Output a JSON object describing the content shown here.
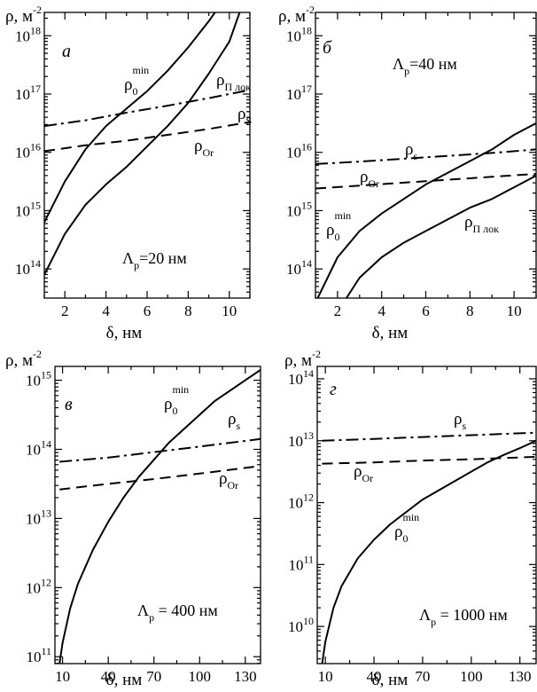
{
  "chart_data": [
    {
      "type": "line",
      "panel_label": "а",
      "xlabel": "δ, нм",
      "ylabel": "ρ, м⁻²",
      "xlim": [
        1,
        11
      ],
      "ylim_log10": [
        13.5,
        18.4
      ],
      "log_y": true,
      "xticks": [
        2,
        4,
        6,
        8,
        10
      ],
      "yticks_log10": [
        14,
        15,
        16,
        17,
        18
      ],
      "annotation": "Λp=20 нм",
      "series": [
        {
          "name": "ρ0 min",
          "style": "solid",
          "x": [
            1,
            2,
            3,
            4,
            5,
            6,
            7,
            8,
            9,
            10
          ],
          "log10_y": [
            14.8,
            15.5,
            16.05,
            16.45,
            16.75,
            17.05,
            17.4,
            17.8,
            18.25,
            18.75
          ]
        },
        {
          "name": "ρП лок",
          "style": "solid",
          "x": [
            1,
            2,
            3,
            4,
            5,
            6,
            7,
            8,
            9,
            10,
            10.5
          ],
          "log10_y": [
            13.9,
            14.6,
            15.1,
            15.45,
            15.75,
            16.1,
            16.45,
            16.85,
            17.35,
            17.9,
            18.4
          ]
        },
        {
          "name": "ρS",
          "style": "dashdot",
          "x": [
            1,
            3,
            5,
            7,
            9,
            11
          ],
          "log10_y": [
            16.45,
            16.55,
            16.68,
            16.8,
            16.93,
            17.07
          ]
        },
        {
          "name": "ρOr",
          "style": "dashed",
          "x": [
            1,
            3,
            5,
            7,
            9,
            11
          ],
          "log10_y": [
            16.02,
            16.12,
            16.2,
            16.3,
            16.4,
            16.52
          ]
        }
      ]
    },
    {
      "type": "line",
      "panel_label": "б",
      "xlabel": "δ, нм",
      "ylabel": "ρ, м⁻²",
      "xlim": [
        1,
        11
      ],
      "ylim_log10": [
        13.5,
        18.4
      ],
      "log_y": true,
      "xticks": [
        2,
        4,
        6,
        8,
        10
      ],
      "yticks_log10": [
        14,
        15,
        16,
        17,
        18
      ],
      "annotation": "Λp=40 нм",
      "series": [
        {
          "name": "ρ0 min",
          "style": "solid",
          "x": [
            1.1,
            2,
            3,
            4,
            5,
            6,
            7,
            8,
            9,
            10,
            11
          ],
          "log10_y": [
            13.5,
            14.2,
            14.65,
            14.95,
            15.2,
            15.45,
            15.65,
            15.85,
            16.05,
            16.3,
            16.5
          ]
        },
        {
          "name": "ρП лок",
          "style": "solid",
          "x": [
            2.4,
            3,
            4,
            5,
            6,
            7,
            8,
            9,
            10,
            11
          ],
          "log10_y": [
            13.5,
            13.85,
            14.2,
            14.45,
            14.65,
            14.85,
            15.05,
            15.2,
            15.4,
            15.6
          ]
        },
        {
          "name": "ρs",
          "style": "dashdot",
          "x": [
            1,
            3,
            5,
            7,
            9,
            11
          ],
          "log10_y": [
            15.8,
            15.84,
            15.89,
            15.94,
            15.99,
            16.05
          ]
        },
        {
          "name": "ρOr",
          "style": "dashed",
          "x": [
            1,
            3,
            5,
            7,
            9,
            11
          ],
          "log10_y": [
            15.38,
            15.43,
            15.48,
            15.53,
            15.58,
            15.63
          ]
        }
      ]
    },
    {
      "type": "line",
      "panel_label": "в",
      "xlabel": "δ, нм",
      "ylabel": "ρ, м⁻²",
      "xlim": [
        5,
        140
      ],
      "ylim_log10": [
        10.9,
        15.2
      ],
      "log_y": true,
      "xticks": [
        10,
        40,
        70,
        100,
        130
      ],
      "yticks_log10": [
        11,
        12,
        13,
        14,
        15
      ],
      "annotation": "Λp = 400 нм",
      "series": [
        {
          "name": "ρ0 min",
          "style": "solid",
          "x": [
            8,
            10,
            15,
            20,
            30,
            40,
            50,
            60,
            70,
            80,
            90,
            100,
            110,
            120,
            130,
            140
          ],
          "log10_y": [
            10.9,
            11.2,
            11.7,
            12.05,
            12.55,
            12.95,
            13.3,
            13.6,
            13.85,
            14.1,
            14.3,
            14.5,
            14.7,
            14.85,
            15.0,
            15.15
          ]
        },
        {
          "name": "ρs",
          "style": "dashdot",
          "x": [
            8,
            40,
            70,
            100,
            140
          ],
          "log10_y": [
            13.82,
            13.88,
            13.96,
            14.04,
            14.15
          ]
        },
        {
          "name": "ρOr",
          "style": "dashed",
          "x": [
            8,
            40,
            70,
            100,
            140
          ],
          "log10_y": [
            13.42,
            13.5,
            13.57,
            13.65,
            13.76
          ]
        }
      ]
    },
    {
      "type": "line",
      "panel_label": "г",
      "xlabel": "δ, нм",
      "ylabel": "ρ, м⁻²",
      "xlim": [
        5,
        140
      ],
      "ylim_log10": [
        9.4,
        14.2
      ],
      "log_y": true,
      "xticks": [
        10,
        40,
        70,
        100,
        130
      ],
      "yticks_log10": [
        10,
        11,
        12,
        13,
        14
      ],
      "annotation": "Λp = 1000 нм",
      "series": [
        {
          "name": "ρ0 min",
          "style": "solid",
          "x": [
            8,
            10,
            15,
            20,
            30,
            40,
            50,
            60,
            70,
            80,
            90,
            100,
            110,
            120,
            130,
            140
          ],
          "log10_y": [
            9.4,
            9.75,
            10.3,
            10.65,
            11.1,
            11.4,
            11.65,
            11.85,
            12.05,
            12.2,
            12.35,
            12.5,
            12.65,
            12.77,
            12.88,
            13.0
          ]
        },
        {
          "name": "ρs",
          "style": "dashdot",
          "x": [
            8,
            40,
            70,
            100,
            140
          ],
          "log10_y": [
            13.0,
            13.03,
            13.06,
            13.09,
            13.13
          ]
        },
        {
          "name": "ρOr",
          "style": "dashed",
          "x": [
            8,
            40,
            70,
            100,
            140
          ],
          "log10_y": [
            12.63,
            12.65,
            12.68,
            12.7,
            12.74
          ]
        }
      ]
    }
  ],
  "panel_texts": [
    {
      "ylabel_main": "ρ, м",
      "ylabel_exp": "-2",
      "xlabel": "δ, нм",
      "lambda_main": "Λ",
      "lambda_sub": "p",
      "lambda_rest": "=20 нм",
      "labels": [
        {
          "main": "ρ",
          "sub": "0",
          "sup": "min"
        },
        {
          "main": "ρ",
          "sub": "П лок",
          "sup": ""
        },
        {
          "main": "ρ",
          "sub": "S",
          "sup": ""
        },
        {
          "main": "ρ",
          "sub": "Or",
          "sup": ""
        }
      ]
    },
    {
      "ylabel_main": "ρ, м",
      "ylabel_exp": "-2",
      "xlabel": "δ, нм",
      "lambda_main": "Λ",
      "lambda_sub": "p",
      "lambda_rest": "=40 нм",
      "labels": [
        {
          "main": "ρ",
          "sub": "0",
          "sup": "min"
        },
        {
          "main": "ρ",
          "sub": "П лок",
          "sup": ""
        },
        {
          "main": "ρ",
          "sub": "s",
          "sup": ""
        },
        {
          "main": "ρ",
          "sub": "Or",
          "sup": ""
        }
      ]
    },
    {
      "ylabel_main": "ρ, м",
      "ylabel_exp": "-2",
      "xlabel": "δ, нм",
      "lambda_main": "Λ",
      "lambda_sub": "p",
      "lambda_rest": " = 400 нм",
      "labels": [
        {
          "main": "ρ",
          "sub": "0",
          "sup": "min"
        },
        {
          "main": "ρ",
          "sub": "s",
          "sup": ""
        },
        {
          "main": "ρ",
          "sub": "Or",
          "sup": ""
        }
      ]
    },
    {
      "ylabel_main": "ρ, м",
      "ylabel_exp": "-2",
      "xlabel": "δ, нм",
      "lambda_main": "Λ",
      "lambda_sub": "p",
      "lambda_rest": " = 1000 нм",
      "labels": [
        {
          "main": "ρ",
          "sub": "0",
          "sup": "min"
        },
        {
          "main": "ρ",
          "sub": "s",
          "sup": ""
        },
        {
          "main": "ρ",
          "sub": "Or",
          "sup": ""
        }
      ]
    }
  ],
  "colors": {
    "line": "#000000",
    "background": "#ffffff"
  }
}
